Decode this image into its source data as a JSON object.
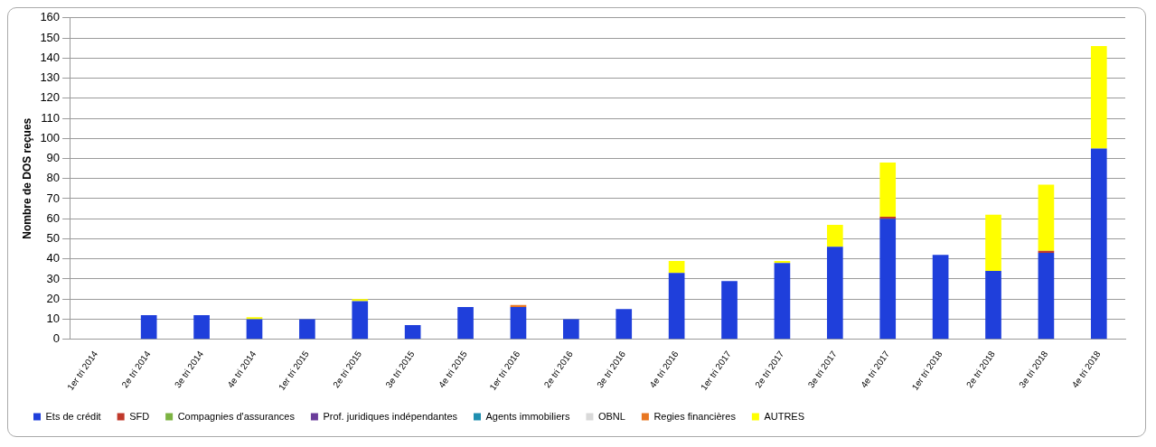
{
  "chart_data": {
    "type": "bar",
    "stacked": true,
    "ylabel": "Nombre de DOS reçues",
    "categories": [
      "1er tri 2014",
      "2e tri 2014",
      "3e tri 2014",
      "4e tri 2014",
      "1er tri 2015",
      "2e tri 2015",
      "3e tri 2015",
      "4e tri 2015",
      "1er tri 2016",
      "2e tri 2016",
      "3e tri 2016",
      "4e tri 2016",
      "1er tri 2017",
      "2e tri 2017",
      "3e tri 2017",
      "4e tri 2017",
      "1er tri 2018",
      "2e tri 2018",
      "3e tri 2018",
      "4e tri 2018"
    ],
    "series": [
      {
        "name": "Ets de crédit",
        "color": "#1f3fdb",
        "values": [
          0,
          12,
          12,
          10,
          10,
          19,
          7,
          16,
          16,
          10,
          15,
          33,
          29,
          38,
          46,
          60,
          42,
          34,
          43,
          95
        ]
      },
      {
        "name": "SFD",
        "color": "#c0392b",
        "values": [
          0,
          0,
          0,
          0,
          0,
          0,
          0,
          0,
          0,
          0,
          0,
          0,
          0,
          0,
          0,
          1,
          0,
          0,
          1,
          0
        ]
      },
      {
        "name": "Compagnies d'assurances",
        "color": "#7cb342",
        "values": [
          0,
          0,
          0,
          0,
          0,
          0,
          0,
          0,
          0,
          0,
          0,
          0,
          0,
          0,
          0,
          0,
          0,
          0,
          0,
          0
        ]
      },
      {
        "name": "Prof. juridiques indépendantes",
        "color": "#6a3d9a",
        "values": [
          0,
          0,
          0,
          0,
          0,
          0,
          0,
          0,
          0,
          0,
          0,
          0,
          0,
          0,
          0,
          0,
          0,
          0,
          0,
          0
        ]
      },
      {
        "name": "Agents immobiliers",
        "color": "#1f8fb0",
        "values": [
          0,
          0,
          0,
          0,
          0,
          0,
          0,
          0,
          0,
          0,
          0,
          0,
          0,
          0,
          0,
          0,
          0,
          0,
          0,
          0
        ]
      },
      {
        "name": "OBNL",
        "color": "#d9d9d9",
        "values": [
          0,
          0,
          0,
          0,
          0,
          0,
          0,
          0,
          0,
          0,
          0,
          0,
          0,
          0,
          0,
          0,
          0,
          0,
          0,
          0
        ]
      },
      {
        "name": "Regies financières",
        "color": "#e87722",
        "values": [
          0,
          0,
          0,
          0,
          0,
          0,
          0,
          0,
          1,
          0,
          0,
          0,
          0,
          0,
          0,
          0,
          0,
          0,
          0,
          0
        ]
      },
      {
        "name": "AUTRES",
        "color": "#ffff00",
        "values": [
          0,
          0,
          0,
          1,
          0,
          1,
          0,
          0,
          0,
          0,
          0,
          6,
          0,
          1,
          11,
          27,
          0,
          28,
          33,
          51
        ]
      }
    ],
    "ylim": [
      0,
      160
    ],
    "yticks": [
      0,
      10,
      20,
      30,
      40,
      50,
      60,
      70,
      80,
      90,
      100,
      110,
      120,
      130,
      140,
      150,
      160
    ],
    "grid": "y",
    "legend": "bottom"
  }
}
